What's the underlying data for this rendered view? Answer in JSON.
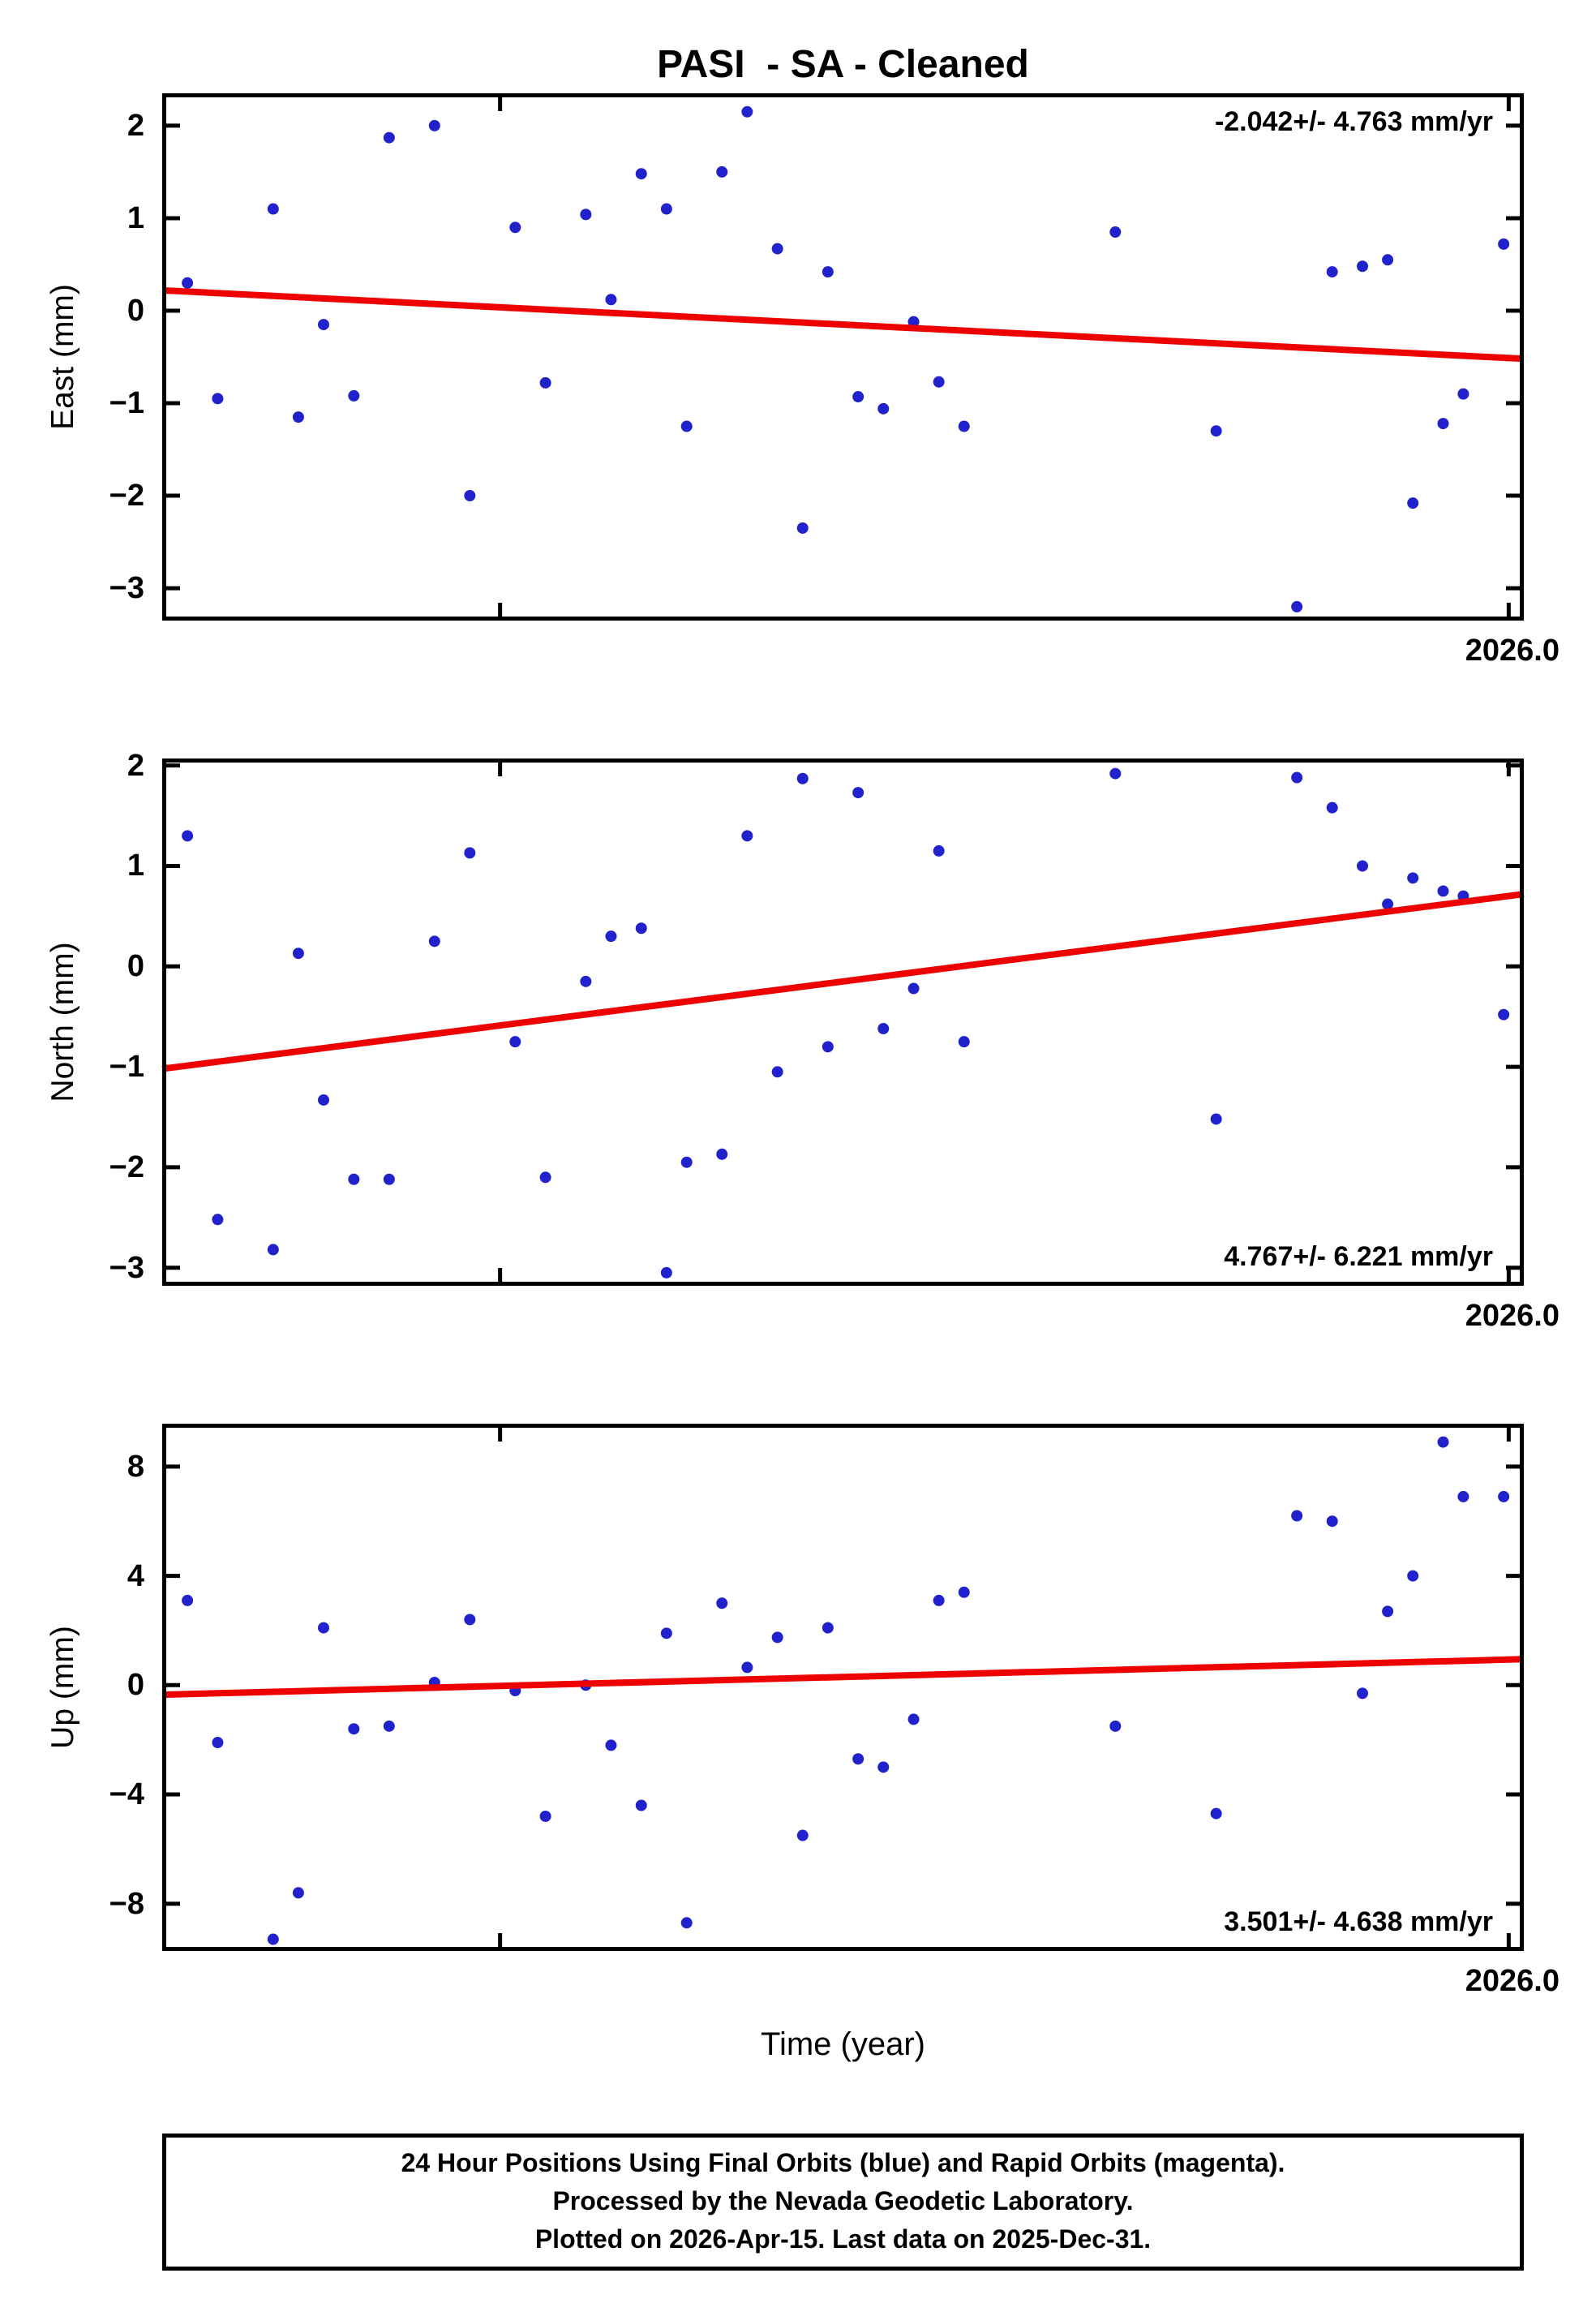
{
  "page": {
    "title": "PASI  - SA - Cleaned",
    "x_axis_title": "Time (year)"
  },
  "colors": {
    "point": "#2222cc",
    "trend": "#ee0000",
    "frame": "#000000",
    "text": "#000000"
  },
  "footer": {
    "line1": "24 Hour Positions Using Final Orbits (blue) and Rapid Orbits (magenta).",
    "line2": "Processed by the Nevada Geodetic Laboratory.",
    "line3": "Plotted on 2026-Apr-15. Last data on 2025-Dec-31."
  },
  "chart_data": [
    {
      "type": "scatter",
      "ylabel": "East (mm)",
      "xlabel": "Time (year)",
      "x_tick_label": "2026.0",
      "xlim": [
        2025.733,
        2026.003
      ],
      "ylim": [
        -3.35,
        2.35
      ],
      "xticks": [
        2025.8,
        2026.0
      ],
      "yticks": [
        -3,
        -2,
        -1,
        0,
        1,
        2
      ],
      "trend": {
        "label": "-2.042+/- 4.763 mm/yr",
        "rate_mm_per_yr": -2.042,
        "uncertainty_mm_per_yr": 4.763,
        "x": [
          2025.733,
          2026.003
        ],
        "y": [
          0.22,
          -0.52
        ]
      },
      "points": {
        "x": [
          2025.738,
          2025.744,
          2025.755,
          2025.76,
          2025.765,
          2025.771,
          2025.778,
          2025.787,
          2025.794,
          2025.803,
          2025.809,
          2025.817,
          2025.822,
          2025.828,
          2025.833,
          2025.837,
          2025.844,
          2025.849,
          2025.855,
          2025.86,
          2025.865,
          2025.871,
          2025.876,
          2025.882,
          2025.887,
          2025.892,
          2025.922,
          2025.942,
          2025.958,
          2025.965,
          2025.971,
          2025.976,
          2025.981,
          2025.987,
          2025.991,
          2025.999
        ],
        "y": [
          0.3,
          -0.95,
          1.1,
          -1.15,
          -0.15,
          -0.92,
          1.87,
          2.0,
          -2.0,
          0.9,
          -0.78,
          1.04,
          0.12,
          1.48,
          1.1,
          -1.25,
          1.5,
          2.15,
          0.67,
          -2.35,
          0.42,
          -0.93,
          -1.06,
          -0.12,
          -0.77,
          -1.25,
          0.85,
          -1.3,
          -3.2,
          0.42,
          0.48,
          0.55,
          -2.08,
          -1.22,
          -0.9,
          0.72
        ]
      }
    },
    {
      "type": "scatter",
      "ylabel": "North (mm)",
      "xlabel": "Time (year)",
      "x_tick_label": "2026.0",
      "xlim": [
        2025.733,
        2026.003
      ],
      "ylim": [
        -3.18,
        2.07
      ],
      "xticks": [
        2025.8,
        2026.0
      ],
      "yticks": [
        -3,
        -2,
        -1,
        0,
        1,
        2
      ],
      "trend": {
        "label": "4.767+/- 6.221 mm/yr",
        "rate_mm_per_yr": 4.767,
        "uncertainty_mm_per_yr": 6.221,
        "x": [
          2025.733,
          2026.003
        ],
        "y": [
          -1.02,
          0.72
        ]
      },
      "points": {
        "x": [
          2025.738,
          2025.744,
          2025.755,
          2025.76,
          2025.765,
          2025.771,
          2025.778,
          2025.787,
          2025.794,
          2025.803,
          2025.809,
          2025.817,
          2025.822,
          2025.828,
          2025.833,
          2025.837,
          2025.844,
          2025.849,
          2025.855,
          2025.86,
          2025.865,
          2025.871,
          2025.876,
          2025.882,
          2025.887,
          2025.892,
          2025.922,
          2025.942,
          2025.958,
          2025.965,
          2025.971,
          2025.976,
          2025.981,
          2025.987,
          2025.991,
          2025.999
        ],
        "y": [
          1.3,
          -2.52,
          -2.82,
          0.13,
          -1.33,
          -2.12,
          -2.12,
          0.25,
          1.13,
          -0.75,
          -2.1,
          -0.15,
          0.3,
          0.38,
          -3.05,
          -1.95,
          -1.87,
          1.3,
          -1.05,
          1.87,
          -0.8,
          1.73,
          -0.62,
          -0.22,
          1.15,
          -0.75,
          1.92,
          -1.52,
          1.88,
          1.58,
          1.0,
          0.62,
          0.88,
          0.75,
          0.7,
          -0.48
        ]
      }
    },
    {
      "type": "scatter",
      "ylabel": "Up (mm)",
      "xlabel": "Time (year)",
      "x_tick_label": "2026.0",
      "xlim": [
        2025.733,
        2026.003
      ],
      "ylim": [
        -9.73,
        9.57
      ],
      "xticks": [
        2025.8,
        2026.0
      ],
      "yticks": [
        -8,
        -4,
        0,
        4,
        8
      ],
      "trend": {
        "label": "3.501+/- 4.638 mm/yr",
        "rate_mm_per_yr": 3.501,
        "uncertainty_mm_per_yr": 4.638,
        "x": [
          2025.733,
          2026.003
        ],
        "y": [
          -0.35,
          0.95
        ]
      },
      "points": {
        "x": [
          2025.738,
          2025.744,
          2025.755,
          2025.76,
          2025.765,
          2025.771,
          2025.778,
          2025.787,
          2025.794,
          2025.803,
          2025.809,
          2025.817,
          2025.822,
          2025.828,
          2025.833,
          2025.837,
          2025.844,
          2025.849,
          2025.855,
          2025.86,
          2025.865,
          2025.871,
          2025.876,
          2025.882,
          2025.887,
          2025.892,
          2025.922,
          2025.942,
          2025.958,
          2025.965,
          2025.971,
          2025.976,
          2025.981,
          2025.987,
          2025.991,
          2025.999
        ],
        "y": [
          3.1,
          -2.1,
          -9.3,
          -7.6,
          2.1,
          -1.6,
          -1.5,
          0.1,
          2.4,
          -0.2,
          -4.8,
          0.0,
          -2.2,
          -4.4,
          1.9,
          -8.7,
          3.0,
          0.65,
          1.75,
          -5.5,
          2.1,
          -2.7,
          -3.0,
          -1.25,
          3.1,
          3.4,
          -1.5,
          -4.7,
          6.2,
          6.0,
          -0.3,
          2.7,
          4.0,
          8.9,
          6.9,
          6.9
        ]
      }
    }
  ]
}
